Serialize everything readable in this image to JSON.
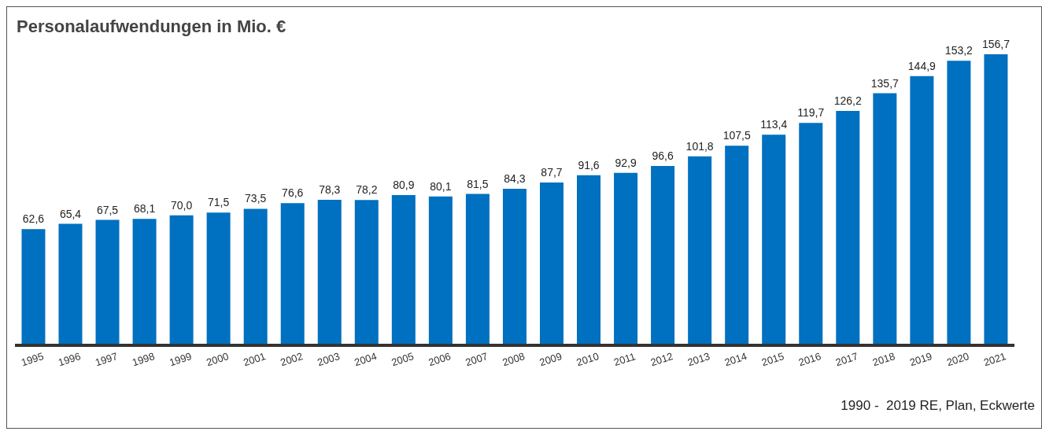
{
  "chart_data": {
    "type": "bar",
    "title": "Personalaufwendungen in Mio. €",
    "categories": [
      "1995",
      "1996",
      "1997",
      "1998",
      "1999",
      "2000",
      "2001",
      "2002",
      "2003",
      "2004",
      "2005",
      "2006",
      "2007",
      "2008",
      "2009",
      "2010",
      "2011",
      "2012",
      "2013",
      "2014",
      "2015",
      "2016",
      "2017",
      "2018",
      "2019",
      "2020",
      "2021"
    ],
    "values": [
      62.6,
      65.4,
      67.5,
      68.1,
      70.0,
      71.5,
      73.5,
      76.6,
      78.3,
      78.2,
      80.9,
      80.1,
      81.5,
      84.3,
      87.7,
      91.6,
      92.9,
      96.6,
      101.8,
      107.5,
      113.4,
      119.7,
      126.2,
      135.7,
      144.9,
      153.2,
      156.7
    ],
    "value_labels": [
      "62,6",
      "65,4",
      "67,5",
      "68,1",
      "70,0",
      "71,5",
      "73,5",
      "76,6",
      "78,3",
      "78,2",
      "80,9",
      "80,1",
      "81,5",
      "84,3",
      "87,7",
      "91,6",
      "92,9",
      "96,6",
      "101,8",
      "107,5",
      "113,4",
      "119,7",
      "126,2",
      "135,7",
      "144,9",
      "153,2",
      "156,7"
    ],
    "color": "#0070c0",
    "annotations": [
      "1990 -  2019 RE, Plan, Eckwerte"
    ]
  }
}
